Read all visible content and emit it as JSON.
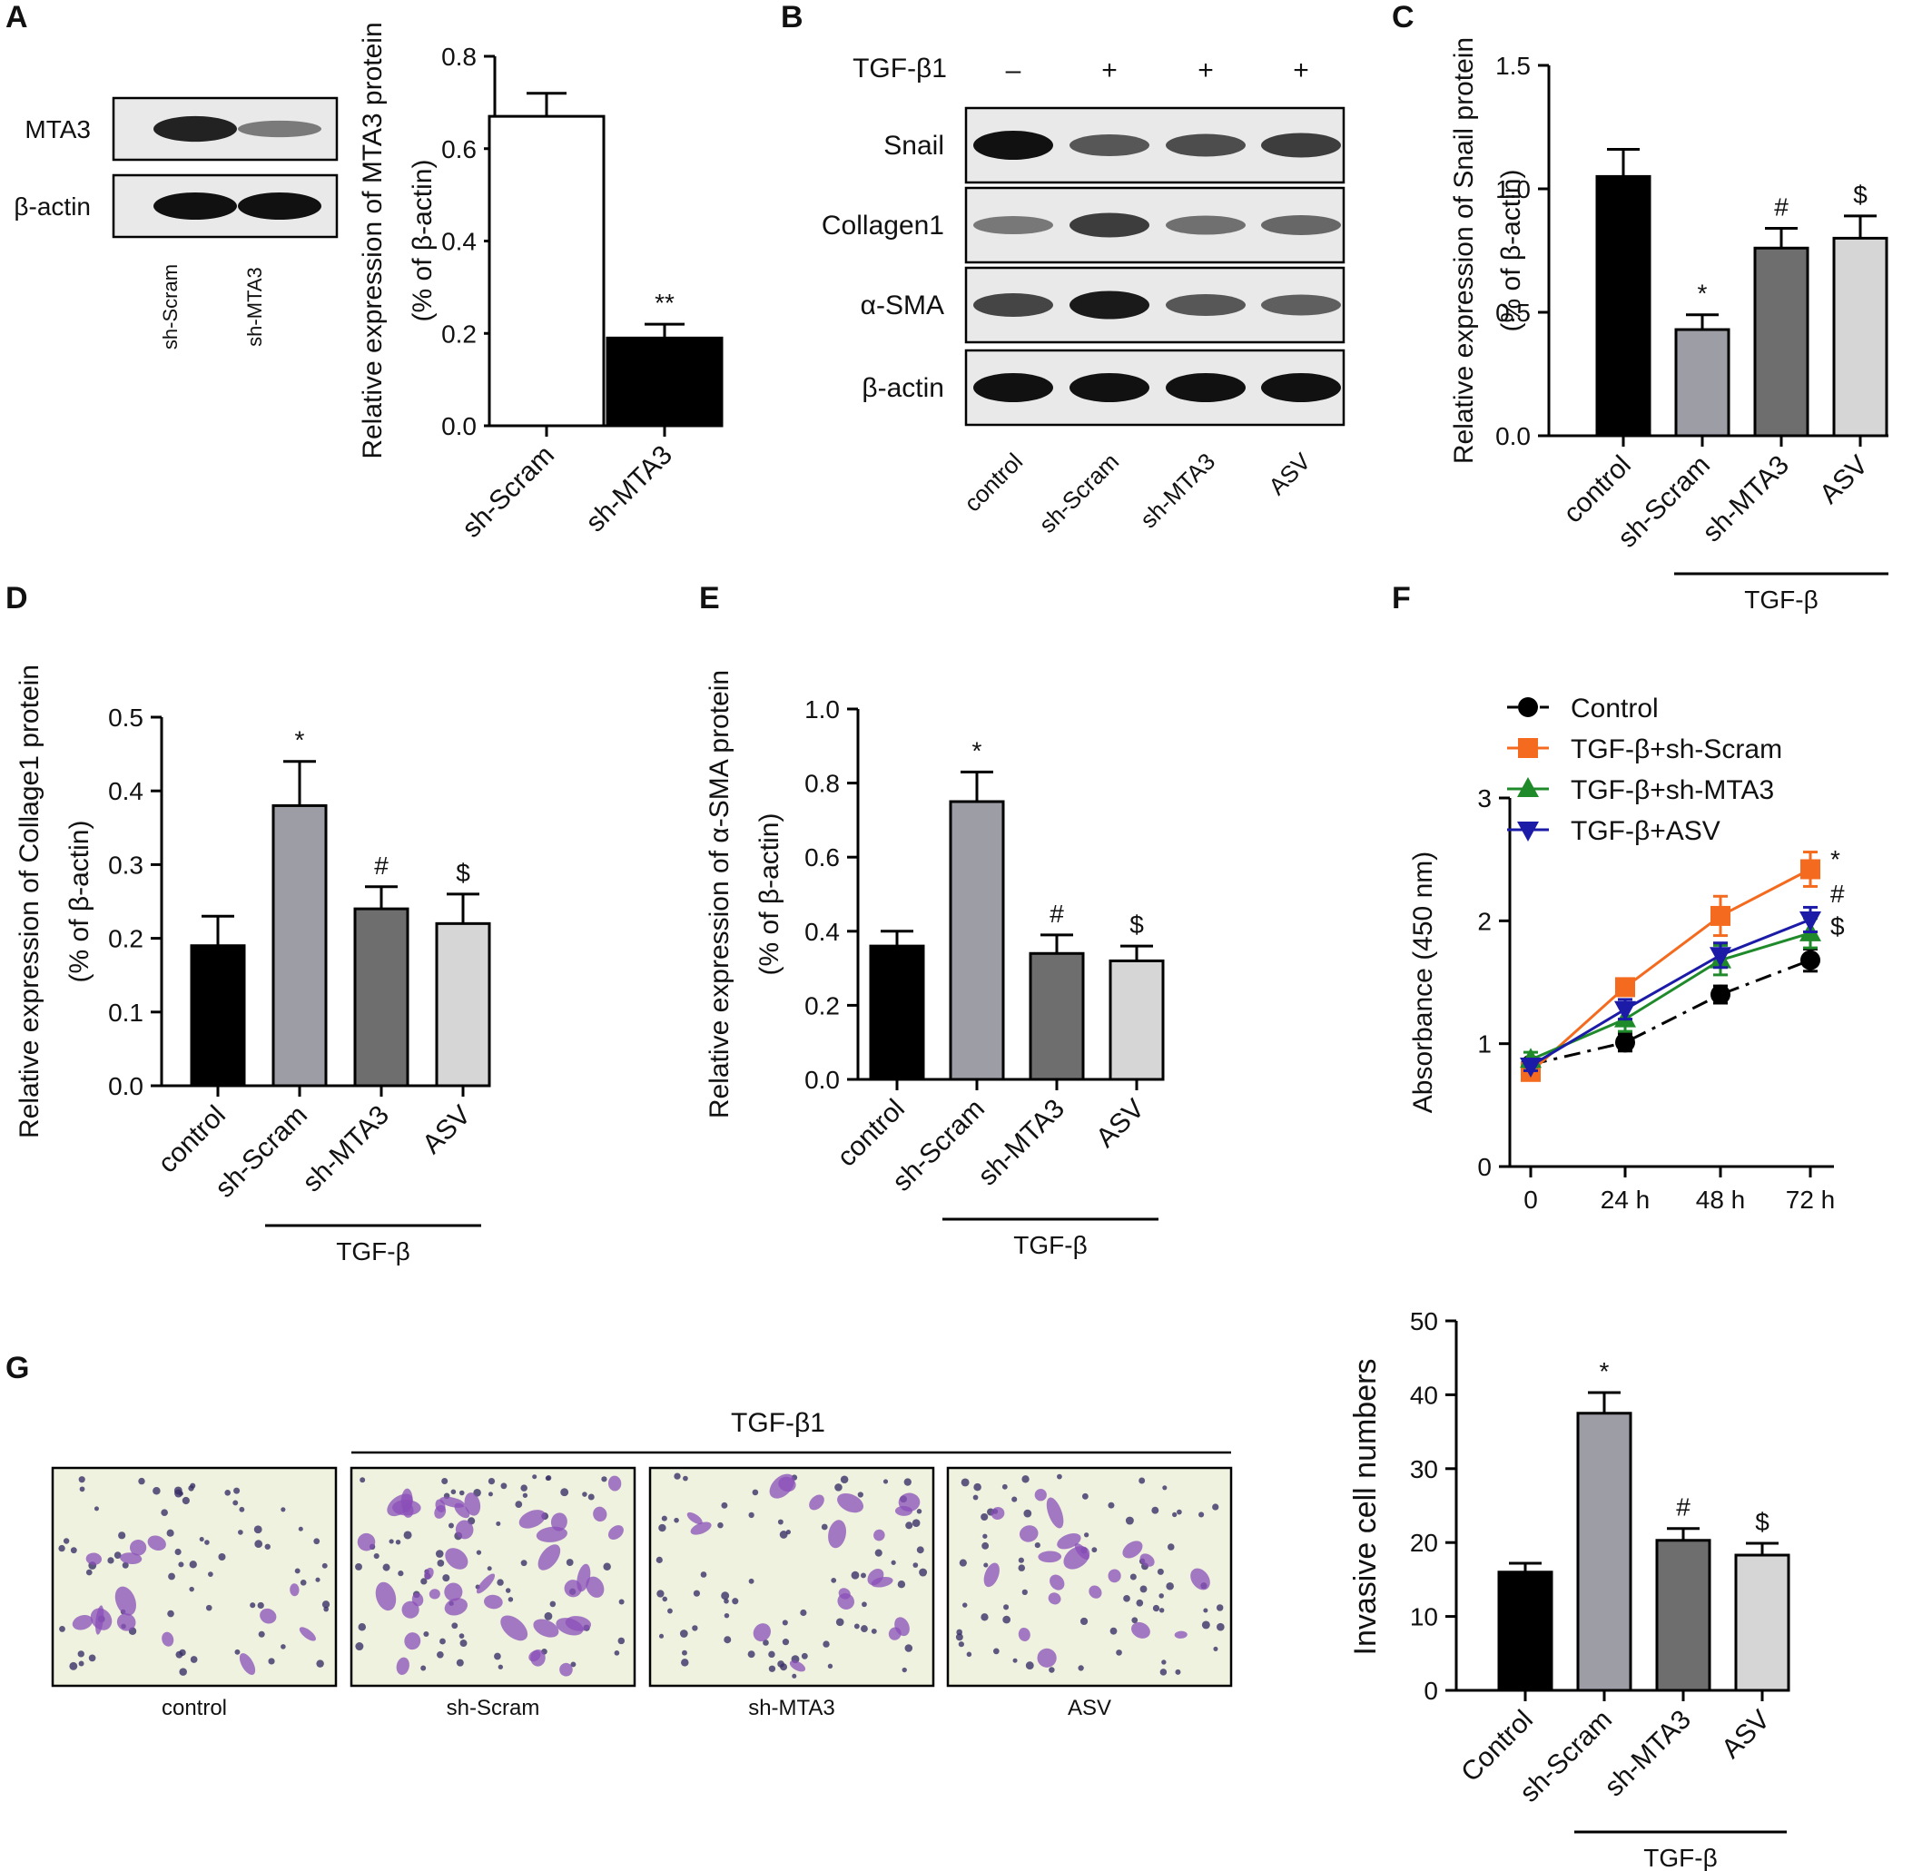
{
  "panel_labels": [
    "A",
    "B",
    "C",
    "D",
    "E",
    "F",
    "G"
  ],
  "colors": {
    "control": "#000000",
    "sh_scram": "#9d9da5",
    "sh_mta3": "#6e6e6e",
    "asv": "#d6d6d6",
    "white": "#ffffff",
    "orange": "#f46b1f",
    "green": "#1f8a2a",
    "blue": "#1b1ba8",
    "blot_bg": "#e9e9e9",
    "blot_band": "#111111",
    "stain_bg": "#eef2de",
    "stain_cell": "#8a4fb8"
  },
  "blot_A": {
    "rows": [
      "MTA3",
      "β-actin"
    ],
    "lanes": [
      "sh-Scram",
      "sh-MTA3"
    ],
    "band_intensity": [
      [
        0.9,
        0.35
      ],
      [
        1.0,
        1.0
      ]
    ]
  },
  "blot_B": {
    "treatment_label": "TGF-β1",
    "treatment_marks": [
      "–",
      "+",
      "+",
      "+"
    ],
    "rows": [
      "Snail",
      "Collagen1",
      "α-SMA",
      "β-actin"
    ],
    "lanes": [
      "control",
      "sh-Scram",
      "sh-MTA3",
      "ASV"
    ],
    "band_intensity": [
      [
        1.0,
        0.6,
        0.65,
        0.75
      ],
      [
        0.4,
        0.75,
        0.45,
        0.5
      ],
      [
        0.7,
        0.95,
        0.6,
        0.55
      ],
      [
        1.0,
        1.0,
        1.0,
        1.0
      ]
    ]
  },
  "micrographs_G": {
    "treatment_label": "TGF-β1",
    "labels": [
      "control",
      "sh-Scram",
      "sh-MTA3",
      "ASV"
    ],
    "relative_density": [
      0.35,
      1.0,
      0.45,
      0.5
    ]
  },
  "chart_data": [
    {
      "panel": "A",
      "type": "bar",
      "categories": [
        "sh-Scram",
        "sh-MTA3"
      ],
      "values": [
        0.67,
        0.19
      ],
      "errors": [
        0.05,
        0.03
      ],
      "annotations": [
        "",
        "**"
      ],
      "bar_colors": [
        "#ffffff",
        "#000000"
      ],
      "ylabel": [
        "Relative expression of MTA3 protein",
        "(% of β-actin)"
      ],
      "ylim": [
        0,
        0.8
      ],
      "yticks": [
        "0.0",
        "0.2",
        "0.4",
        "0.6",
        "0.8"
      ],
      "group_label": ""
    },
    {
      "panel": "C",
      "type": "bar",
      "categories": [
        "control",
        "sh-Scram",
        "sh-MTA3",
        "ASV"
      ],
      "values": [
        1.05,
        0.43,
        0.76,
        0.8
      ],
      "errors": [
        0.11,
        0.06,
        0.08,
        0.09
      ],
      "annotations": [
        "",
        "*",
        "#",
        "$"
      ],
      "bar_colors": [
        "#000000",
        "#9d9da5",
        "#6e6e6e",
        "#d6d6d6"
      ],
      "ylabel": [
        "Relative expression of Snail protein",
        "(% of β-actin)"
      ],
      "ylim": [
        0,
        1.5
      ],
      "yticks": [
        "0.0",
        "0.5",
        "1.0",
        "1.5"
      ],
      "group_label": "TGF-β"
    },
    {
      "panel": "D",
      "type": "bar",
      "categories": [
        "control",
        "sh-Scram",
        "sh-MTA3",
        "ASV"
      ],
      "values": [
        0.19,
        0.38,
        0.24,
        0.22
      ],
      "errors": [
        0.04,
        0.06,
        0.03,
        0.04
      ],
      "annotations": [
        "",
        "*",
        "#",
        "$"
      ],
      "bar_colors": [
        "#000000",
        "#9d9da5",
        "#6e6e6e",
        "#d6d6d6"
      ],
      "ylabel": [
        "Relative expression of Collage1 protein",
        "(% of β-actin)"
      ],
      "ylim": [
        0,
        0.5
      ],
      "yticks": [
        "0.0",
        "0.1",
        "0.2",
        "0.3",
        "0.4",
        "0.5"
      ],
      "group_label": "TGF-β"
    },
    {
      "panel": "E",
      "type": "bar",
      "categories": [
        "control",
        "sh-Scram",
        "sh-MTA3",
        "ASV"
      ],
      "values": [
        0.36,
        0.75,
        0.34,
        0.32
      ],
      "errors": [
        0.04,
        0.08,
        0.05,
        0.04
      ],
      "annotations": [
        "",
        "*",
        "#",
        "$"
      ],
      "bar_colors": [
        "#000000",
        "#9d9da5",
        "#6e6e6e",
        "#d6d6d6"
      ],
      "ylabel": [
        "Relative expression of α-SMA protein",
        "(% of β-actin)"
      ],
      "ylim": [
        0,
        1.0
      ],
      "yticks": [
        "0.0",
        "0.2",
        "0.4",
        "0.6",
        "0.8",
        "1.0"
      ],
      "group_label": "TGF-β"
    },
    {
      "panel": "F",
      "type": "line",
      "x": [
        "0",
        "24 h",
        "48 h",
        "72 h"
      ],
      "ylabel": [
        "Absorbance (450 nm)"
      ],
      "ylim": [
        0,
        3
      ],
      "yticks": [
        "0",
        "1",
        "2",
        "3"
      ],
      "series": [
        {
          "name": "Control",
          "values": [
            0.83,
            1.01,
            1.4,
            1.68
          ],
          "errors": [
            0.04,
            0.07,
            0.07,
            0.09
          ],
          "color": "#000000",
          "marker": "circle",
          "dashed": true
        },
        {
          "name": "TGF-β+sh-Scram",
          "values": [
            0.77,
            1.46,
            2.04,
            2.42
          ],
          "errors": [
            0.04,
            0.06,
            0.16,
            0.14
          ],
          "color": "#f46b1f",
          "marker": "square",
          "dashed": false
        },
        {
          "name": "TGF-β+sh-MTA3",
          "values": [
            0.87,
            1.2,
            1.68,
            1.9
          ],
          "errors": [
            0.06,
            0.1,
            0.12,
            0.12
          ],
          "color": "#1f8a2a",
          "marker": "triangle-up",
          "dashed": false
        },
        {
          "name": "TGF-β+ASV",
          "values": [
            0.82,
            1.28,
            1.72,
            2.01
          ],
          "errors": [
            0.04,
            0.08,
            0.1,
            0.1
          ],
          "color": "#1b1ba8",
          "marker": "triangle-down",
          "dashed": false
        }
      ],
      "end_annotations": [
        "*",
        "#",
        "$"
      ],
      "legend_position": "top"
    },
    {
      "panel": "G",
      "type": "bar",
      "categories": [
        "Control",
        "sh-Scram",
        "sh-MTA3",
        "ASV"
      ],
      "values": [
        16,
        37.5,
        20.3,
        18.3
      ],
      "errors": [
        1.2,
        2.8,
        1.6,
        1.6
      ],
      "annotations": [
        "",
        "*",
        "#",
        "$"
      ],
      "bar_colors": [
        "#000000",
        "#9d9da5",
        "#6e6e6e",
        "#d6d6d6"
      ],
      "ylabel": [
        "Invasive cell numbers"
      ],
      "ylim": [
        0,
        50
      ],
      "yticks": [
        "0",
        "10",
        "20",
        "30",
        "40",
        "50"
      ],
      "group_label": "TGF-β"
    }
  ]
}
